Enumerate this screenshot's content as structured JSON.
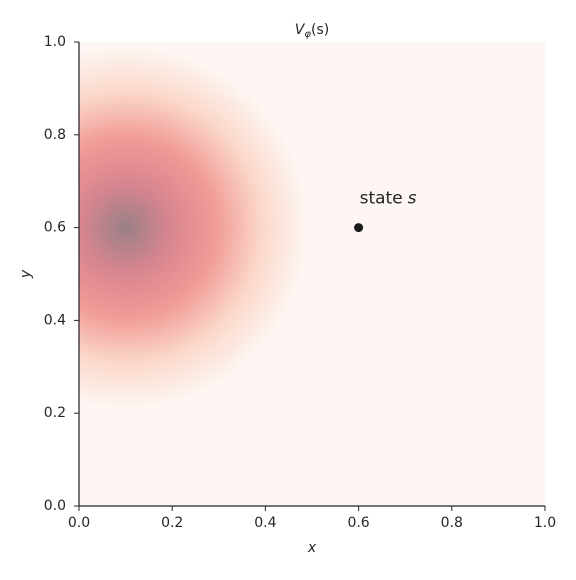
{
  "chart_data": {
    "type": "heatmap",
    "title": {
      "main": "V",
      "sub": "φ",
      "rest": "(s)"
    },
    "x_label": "x",
    "y_label": "y",
    "xlim": [
      0.0,
      1.0
    ],
    "ylim": [
      0.0,
      1.0
    ],
    "xticks": [
      {
        "value": 0,
        "label": "0.0"
      },
      0.2,
      0.4,
      0.6,
      0.8,
      {
        "value": 1,
        "label": "1.0"
      }
    ],
    "yticks": [
      {
        "value": 0,
        "label": "0.0"
      },
      0.2,
      0.4,
      0.6,
      0.8,
      {
        "value": 1,
        "label": "1.0"
      }
    ],
    "heatmap": {
      "center_x": 0.1,
      "center_y": 0.6,
      "sigma": 0.13,
      "colors": [
        "#9a8087",
        "#d9858f",
        "#f19c97",
        "#fbd8ca",
        "#fdf6f2"
      ]
    },
    "point": {
      "x": 0.6,
      "y": 0.6,
      "color": "#1a1a1a"
    },
    "annotation": {
      "text": "state",
      "var": "s"
    }
  }
}
